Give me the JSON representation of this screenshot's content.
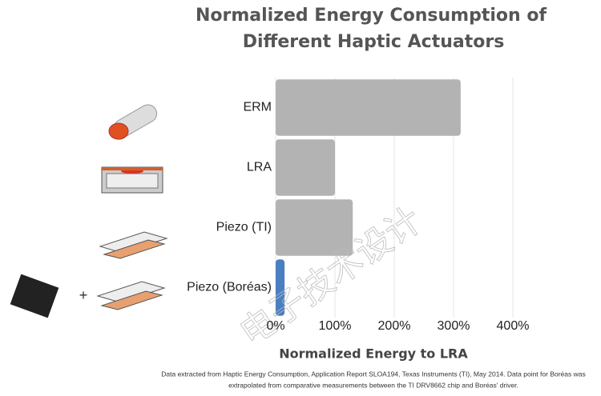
{
  "chart_data": {
    "type": "hbar",
    "title": [
      "Normalized Energy Consumption of",
      "Different Haptic Actuators"
    ],
    "categories": [
      "ERM",
      "LRA",
      "Piezo (TI)",
      "Piezo (Boréas)"
    ],
    "values": [
      312,
      100,
      130,
      15
    ],
    "colors": [
      "#b3b3b3",
      "#b3b3b3",
      "#b3b3b3",
      "#4a7fc1"
    ],
    "xlim": [
      0,
      400
    ],
    "xticks": [
      {
        "value": 0,
        "label": "0%"
      },
      {
        "value": 100,
        "label": "100%"
      },
      {
        "value": 200,
        "label": "200%"
      },
      {
        "value": 300,
        "label": "300%"
      },
      {
        "value": 400,
        "label": "400%"
      }
    ],
    "grid": true,
    "x_label": "Normalized Energy to LRA",
    "note": [
      "Data extracted from Haptic Energy Consumption, Application Report SLOA194, Texas Instruments (TI), May 2014. Data point for Boréas was",
      "extrapolated from comparative measurements between the TI DRV8662 chip and Boréas' driver."
    ],
    "watermark": "电子技术设计",
    "plus_sign": "+"
  }
}
